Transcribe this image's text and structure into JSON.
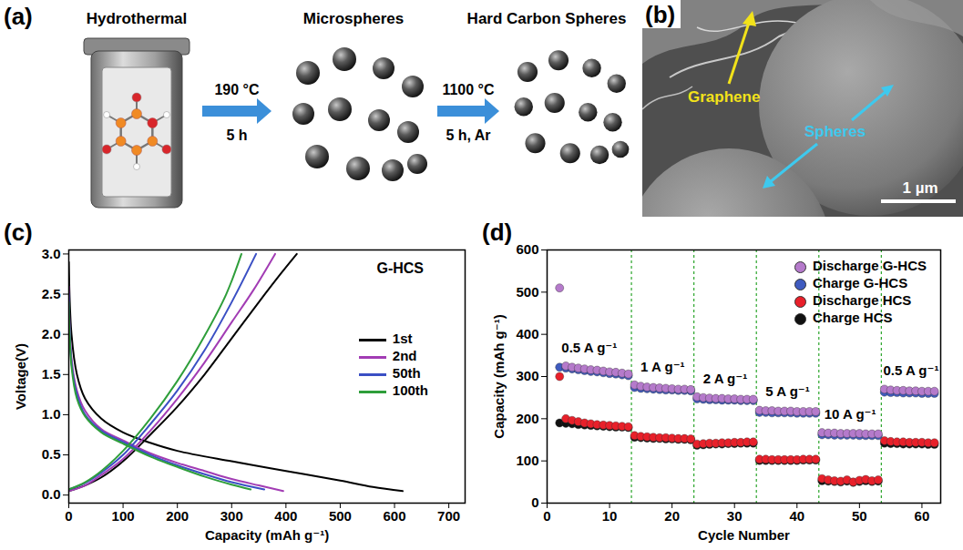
{
  "panels": {
    "a": {
      "letter": "(a)",
      "steps": [
        "Hydrothermal",
        "Microspheres",
        "Hard Carbon Spheres"
      ],
      "arrows": [
        {
          "above": "190 °C",
          "below": "5 h"
        },
        {
          "above": "1100 °C",
          "below": "5 h, Ar"
        }
      ]
    },
    "b": {
      "letter": "(b)",
      "graphene": "Graphene",
      "spheres": "Spheres",
      "scale_bar": "1 µm"
    }
  },
  "chart_data": [
    {
      "panel": "(c)",
      "type": "line",
      "annotation": "G-HCS",
      "x_label": "Capacity (mAh g⁻¹)",
      "y_label": "Voltage(V)",
      "xlim": [
        0,
        730
      ],
      "xticks": [
        0,
        100,
        200,
        300,
        400,
        500,
        600,
        700
      ],
      "ylim": [
        -0.1,
        3.05
      ],
      "yticks": [
        {
          "value": 0,
          "label": "0.0"
        },
        0.5,
        {
          "value": 1,
          "label": "1.0"
        },
        1.5,
        {
          "value": 2,
          "label": "2.0"
        },
        2.5,
        {
          "value": 3,
          "label": "3.0"
        }
      ],
      "legend": "top-right",
      "series": [
        {
          "name": "1st",
          "color": "#000000",
          "x": [
            0,
            5,
            15,
            30,
            60,
            100,
            150,
            200,
            300,
            400,
            500,
            560,
            615,
            null,
            0,
            30,
            60,
            100,
            150,
            200,
            250,
            300,
            350,
            390,
            420
          ],
          "values": [
            2.9,
            2.0,
            1.5,
            1.2,
            0.95,
            0.78,
            0.65,
            0.55,
            0.42,
            0.3,
            0.18,
            0.1,
            0.05,
            null,
            0.05,
            0.12,
            0.22,
            0.42,
            0.75,
            1.1,
            1.5,
            1.95,
            2.4,
            2.75,
            3.0
          ]
        },
        {
          "name": "2nd",
          "color": "#a23cb4",
          "x": [
            0,
            5,
            15,
            30,
            60,
            100,
            150,
            200,
            250,
            300,
            350,
            395,
            null,
            0,
            30,
            60,
            100,
            150,
            200,
            250,
            300,
            340,
            380
          ],
          "values": [
            2.6,
            1.7,
            1.3,
            1.05,
            0.82,
            0.68,
            0.52,
            0.4,
            0.3,
            0.2,
            0.12,
            0.05,
            null,
            0.05,
            0.12,
            0.25,
            0.45,
            0.8,
            1.2,
            1.65,
            2.15,
            2.55,
            3.0
          ]
        },
        {
          "name": "50th",
          "color": "#3a4fc4",
          "x": [
            0,
            5,
            15,
            30,
            60,
            100,
            150,
            200,
            250,
            300,
            360,
            null,
            0,
            30,
            60,
            100,
            150,
            200,
            250,
            300,
            345
          ],
          "values": [
            2.5,
            1.65,
            1.25,
            1.0,
            0.8,
            0.66,
            0.5,
            0.37,
            0.26,
            0.16,
            0.07,
            null,
            0.07,
            0.15,
            0.28,
            0.5,
            0.88,
            1.3,
            1.8,
            2.4,
            3.0
          ]
        },
        {
          "name": "100th",
          "color": "#2e9e3a",
          "x": [
            0,
            5,
            15,
            30,
            60,
            100,
            150,
            200,
            250,
            300,
            335,
            null,
            0,
            30,
            60,
            100,
            150,
            200,
            250,
            290,
            318
          ],
          "values": [
            2.4,
            1.6,
            1.2,
            0.98,
            0.78,
            0.64,
            0.48,
            0.35,
            0.23,
            0.13,
            0.07,
            null,
            0.07,
            0.16,
            0.3,
            0.55,
            0.95,
            1.42,
            1.98,
            2.5,
            3.0
          ]
        }
      ]
    },
    {
      "panel": "(d)",
      "type": "scatter",
      "x_label": "Cycle Number",
      "y_label": "Capacity (mAh g⁻¹)",
      "xlim": [
        0,
        63
      ],
      "xticks": [
        0,
        10,
        20,
        30,
        40,
        50,
        60
      ],
      "ylim": [
        0,
        600
      ],
      "yticks": [
        0,
        100,
        200,
        300,
        400,
        500,
        600
      ],
      "legend": "top-right",
      "dividers": [
        13.5,
        23.5,
        33.5,
        43.5,
        53.5
      ],
      "rate_labels": [
        "0.5 A g⁻¹",
        "1 A g⁻¹",
        "2 A g⁻¹",
        "5 A g⁻¹",
        "10 A g⁻¹",
        "0.5 A g⁻¹"
      ],
      "x": [
        2,
        3,
        4,
        5,
        6,
        7,
        8,
        9,
        10,
        11,
        12,
        13,
        14,
        15,
        16,
        17,
        18,
        19,
        20,
        21,
        22,
        23,
        24,
        25,
        26,
        27,
        28,
        29,
        30,
        31,
        32,
        33,
        34,
        35,
        36,
        37,
        38,
        39,
        40,
        41,
        42,
        43,
        44,
        45,
        46,
        47,
        48,
        49,
        50,
        51,
        52,
        53,
        54,
        55,
        56,
        57,
        58,
        59,
        60,
        61,
        62
      ],
      "series": [
        {
          "name": "Discharge G-HCS",
          "color": "#b57acb",
          "values": [
            510,
            325,
            322,
            320,
            318,
            316,
            315,
            313,
            311,
            310,
            308,
            306,
            280,
            277,
            275,
            274,
            273,
            272,
            271,
            270,
            270,
            269,
            252,
            250,
            249,
            248,
            248,
            247,
            247,
            246,
            246,
            246,
            220,
            219,
            219,
            218,
            218,
            218,
            217,
            217,
            217,
            217,
            167,
            166,
            166,
            165,
            165,
            165,
            165,
            164,
            164,
            164,
            270,
            268,
            267,
            267,
            266,
            266,
            265,
            265,
            265
          ]
        },
        {
          "name": "Charge G-HCS",
          "color": "#3f5bbf",
          "values": [
            322,
            320,
            318,
            316,
            314,
            312,
            311,
            309,
            307,
            306,
            304,
            302,
            274,
            272,
            271,
            270,
            269,
            268,
            268,
            267,
            267,
            266,
            247,
            246,
            245,
            245,
            244,
            244,
            244,
            243,
            243,
            243,
            215,
            215,
            214,
            214,
            214,
            214,
            213,
            213,
            213,
            213,
            162,
            162,
            161,
            161,
            161,
            161,
            160,
            160,
            160,
            160,
            263,
            262,
            262,
            261,
            261,
            261,
            260,
            260,
            260
          ]
        },
        {
          "name": "Discharge HCS",
          "color": "#e8202a",
          "values": [
            300,
            200,
            196,
            193,
            190,
            188,
            186,
            185,
            184,
            183,
            182,
            181,
            160,
            158,
            157,
            156,
            155,
            155,
            154,
            153,
            153,
            152,
            140,
            141,
            142,
            142,
            143,
            143,
            144,
            144,
            145,
            145,
            104,
            104,
            103,
            103,
            103,
            103,
            103,
            104,
            104,
            104,
            58,
            55,
            53,
            52,
            55,
            50,
            54,
            56,
            53,
            55,
            148,
            146,
            145,
            145,
            144,
            144,
            144,
            143,
            143
          ]
        },
        {
          "name": "Charge HCS",
          "color": "#111111",
          "values": [
            190,
            189,
            188,
            186,
            185,
            184,
            183,
            182,
            181,
            180,
            180,
            179,
            156,
            155,
            154,
            153,
            153,
            152,
            152,
            151,
            151,
            150,
            137,
            138,
            139,
            140,
            140,
            141,
            141,
            142,
            142,
            142,
            101,
            101,
            101,
            101,
            101,
            101,
            101,
            102,
            102,
            102,
            53,
            52,
            51,
            50,
            52,
            49,
            51,
            53,
            51,
            52,
            142,
            141,
            141,
            140,
            140,
            140,
            140,
            139,
            139
          ]
        }
      ]
    }
  ]
}
